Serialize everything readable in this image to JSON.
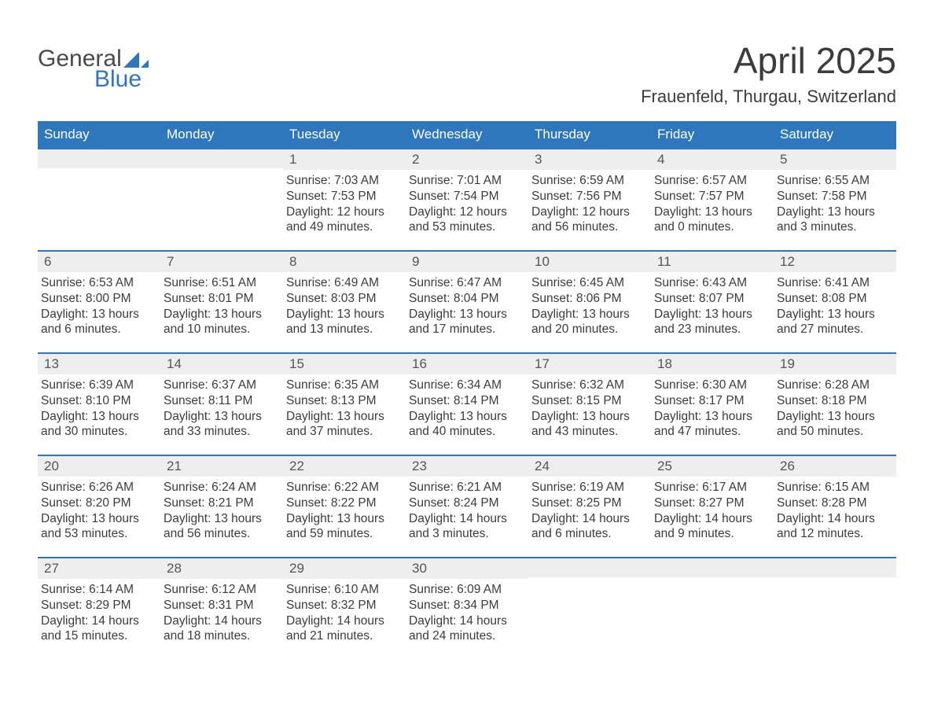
{
  "brand": {
    "word1": "General",
    "word2": "Blue",
    "sail_color": "#2f77bc"
  },
  "title": "April 2025",
  "location": "Frauenfeld, Thurgau, Switzerland",
  "accent_color": "#2f77bc",
  "stripe_color": "#eeeeee",
  "text_color": "#3c3c3c",
  "days_of_week": [
    "Sunday",
    "Monday",
    "Tuesday",
    "Wednesday",
    "Thursday",
    "Friday",
    "Saturday"
  ],
  "weeks": [
    [
      {
        "n": "",
        "sr": "",
        "ss": "",
        "dl": ""
      },
      {
        "n": "",
        "sr": "",
        "ss": "",
        "dl": ""
      },
      {
        "n": "1",
        "sr": "7:03 AM",
        "ss": "7:53 PM",
        "dl": "12 hours and 49 minutes."
      },
      {
        "n": "2",
        "sr": "7:01 AM",
        "ss": "7:54 PM",
        "dl": "12 hours and 53 minutes."
      },
      {
        "n": "3",
        "sr": "6:59 AM",
        "ss": "7:56 PM",
        "dl": "12 hours and 56 minutes."
      },
      {
        "n": "4",
        "sr": "6:57 AM",
        "ss": "7:57 PM",
        "dl": "13 hours and 0 minutes."
      },
      {
        "n": "5",
        "sr": "6:55 AM",
        "ss": "7:58 PM",
        "dl": "13 hours and 3 minutes."
      }
    ],
    [
      {
        "n": "6",
        "sr": "6:53 AM",
        "ss": "8:00 PM",
        "dl": "13 hours and 6 minutes."
      },
      {
        "n": "7",
        "sr": "6:51 AM",
        "ss": "8:01 PM",
        "dl": "13 hours and 10 minutes."
      },
      {
        "n": "8",
        "sr": "6:49 AM",
        "ss": "8:03 PM",
        "dl": "13 hours and 13 minutes."
      },
      {
        "n": "9",
        "sr": "6:47 AM",
        "ss": "8:04 PM",
        "dl": "13 hours and 17 minutes."
      },
      {
        "n": "10",
        "sr": "6:45 AM",
        "ss": "8:06 PM",
        "dl": "13 hours and 20 minutes."
      },
      {
        "n": "11",
        "sr": "6:43 AM",
        "ss": "8:07 PM",
        "dl": "13 hours and 23 minutes."
      },
      {
        "n": "12",
        "sr": "6:41 AM",
        "ss": "8:08 PM",
        "dl": "13 hours and 27 minutes."
      }
    ],
    [
      {
        "n": "13",
        "sr": "6:39 AM",
        "ss": "8:10 PM",
        "dl": "13 hours and 30 minutes."
      },
      {
        "n": "14",
        "sr": "6:37 AM",
        "ss": "8:11 PM",
        "dl": "13 hours and 33 minutes."
      },
      {
        "n": "15",
        "sr": "6:35 AM",
        "ss": "8:13 PM",
        "dl": "13 hours and 37 minutes."
      },
      {
        "n": "16",
        "sr": "6:34 AM",
        "ss": "8:14 PM",
        "dl": "13 hours and 40 minutes."
      },
      {
        "n": "17",
        "sr": "6:32 AM",
        "ss": "8:15 PM",
        "dl": "13 hours and 43 minutes."
      },
      {
        "n": "18",
        "sr": "6:30 AM",
        "ss": "8:17 PM",
        "dl": "13 hours and 47 minutes."
      },
      {
        "n": "19",
        "sr": "6:28 AM",
        "ss": "8:18 PM",
        "dl": "13 hours and 50 minutes."
      }
    ],
    [
      {
        "n": "20",
        "sr": "6:26 AM",
        "ss": "8:20 PM",
        "dl": "13 hours and 53 minutes."
      },
      {
        "n": "21",
        "sr": "6:24 AM",
        "ss": "8:21 PM",
        "dl": "13 hours and 56 minutes."
      },
      {
        "n": "22",
        "sr": "6:22 AM",
        "ss": "8:22 PM",
        "dl": "13 hours and 59 minutes."
      },
      {
        "n": "23",
        "sr": "6:21 AM",
        "ss": "8:24 PM",
        "dl": "14 hours and 3 minutes."
      },
      {
        "n": "24",
        "sr": "6:19 AM",
        "ss": "8:25 PM",
        "dl": "14 hours and 6 minutes."
      },
      {
        "n": "25",
        "sr": "6:17 AM",
        "ss": "8:27 PM",
        "dl": "14 hours and 9 minutes."
      },
      {
        "n": "26",
        "sr": "6:15 AM",
        "ss": "8:28 PM",
        "dl": "14 hours and 12 minutes."
      }
    ],
    [
      {
        "n": "27",
        "sr": "6:14 AM",
        "ss": "8:29 PM",
        "dl": "14 hours and 15 minutes."
      },
      {
        "n": "28",
        "sr": "6:12 AM",
        "ss": "8:31 PM",
        "dl": "14 hours and 18 minutes."
      },
      {
        "n": "29",
        "sr": "6:10 AM",
        "ss": "8:32 PM",
        "dl": "14 hours and 21 minutes."
      },
      {
        "n": "30",
        "sr": "6:09 AM",
        "ss": "8:34 PM",
        "dl": "14 hours and 24 minutes."
      },
      {
        "n": "",
        "sr": "",
        "ss": "",
        "dl": ""
      },
      {
        "n": "",
        "sr": "",
        "ss": "",
        "dl": ""
      },
      {
        "n": "",
        "sr": "",
        "ss": "",
        "dl": ""
      }
    ]
  ],
  "labels": {
    "sunrise": "Sunrise: ",
    "sunset": "Sunset: ",
    "daylight": "Daylight: "
  }
}
